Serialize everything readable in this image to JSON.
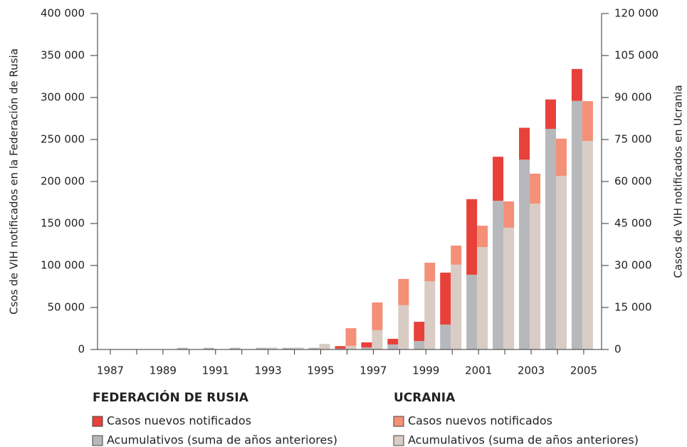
{
  "chart_data": {
    "type": "bar",
    "y_label": "Csos de VIH notificados en la Federación de Rusia",
    "y2_label": "Casos de VIH notificados en Ucrania",
    "categories": [
      "1987",
      null,
      "1989",
      null,
      "1991",
      null,
      "1993",
      null,
      "1995",
      null,
      "1997",
      null,
      "1999",
      null,
      "2001",
      null,
      "2003",
      null,
      "2005"
    ],
    "legend_groups": [
      "FEDERACIÓN DE RUSIA",
      "UCRANIA"
    ],
    "series": [
      {
        "name": "Casos nuevos notificados",
        "color": "#e8413a",
        "axis": "y",
        "values": [
          0,
          0,
          0,
          0,
          0,
          0,
          0,
          0,
          0,
          3000,
          6000,
          6700,
          23000,
          61800,
          90000,
          52500,
          38000,
          35000,
          38000
        ]
      },
      {
        "name": "Acumulativos (suma de años anteriores)",
        "color": "#b6b8bc",
        "axis": "y",
        "values": [
          0,
          0,
          0,
          2000,
          2000,
          2000,
          2000,
          2000,
          2000,
          1000,
          2500,
          6000,
          10000,
          29700,
          89000,
          177000,
          226000,
          262700,
          296000
        ]
      },
      {
        "name": "Casos nuevos notificados",
        "color": "#f48f78",
        "axis": "y2",
        "values": [
          0,
          0,
          0,
          0,
          0,
          0,
          0,
          0,
          0,
          6300,
          9900,
          9400,
          6600,
          6800,
          7600,
          9400,
          10700,
          13300,
          14200
        ]
      },
      {
        "name": "Acumulativos (suma de años anteriores)",
        "color": "#d8ccc4",
        "axis": "y2",
        "values": [
          0,
          0,
          0,
          0,
          0,
          0,
          700,
          700,
          2000,
          1300,
          6900,
          15800,
          24400,
          30300,
          36600,
          43500,
          52100,
          62000,
          74500
        ]
      }
    ],
    "ylim": [
      0,
      400000
    ],
    "yticks": [
      0,
      {
        "value": 50000,
        "label": "50 000"
      },
      {
        "value": 100000,
        "label": "100 000"
      },
      {
        "value": 150000,
        "label": "150 000"
      },
      {
        "value": 200000,
        "label": "200 000"
      },
      {
        "value": 250000,
        "label": "250 000"
      },
      {
        "value": 300000,
        "label": "300 000"
      },
      {
        "value": 350000,
        "label": "350 000"
      },
      {
        "value": 400000,
        "label": "400 000"
      }
    ],
    "y2lim": [
      0,
      120000
    ],
    "y2ticks": [
      0,
      {
        "value": 15000,
        "label": "15 000"
      },
      {
        "value": 30000,
        "label": "30 000"
      },
      {
        "value": 45000,
        "label": "45 000"
      },
      {
        "value": 60000,
        "label": "60 000"
      },
      {
        "value": 75000,
        "label": "75 000"
      },
      {
        "value": 90000,
        "label": "90 000"
      },
      {
        "value": 105000,
        "label": "105 000"
      },
      {
        "value": 120000,
        "label": "120 000"
      }
    ]
  }
}
